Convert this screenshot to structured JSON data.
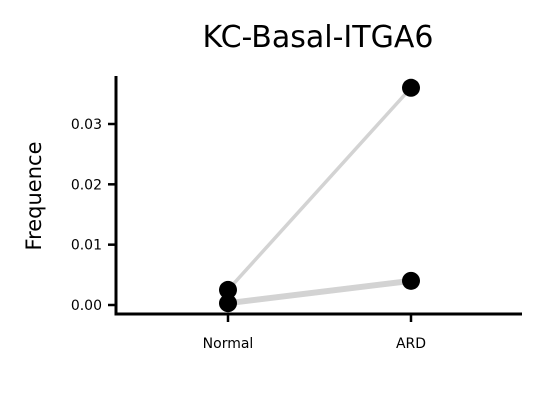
{
  "chart_data": {
    "type": "scatter",
    "title": "KC-Basal-ITGA6",
    "xlabel": "",
    "ylabel": "Frequence",
    "categories": [
      "Normal",
      "ARD"
    ],
    "ylim": [
      -0.0015,
      0.0385
    ],
    "yticks": [
      0.0,
      0.01,
      0.02,
      0.03
    ],
    "ytick_labels": [
      "0.00",
      "0.01",
      "0.02",
      "0.03"
    ],
    "grid": false,
    "legend": "none",
    "paired": true,
    "pairs": [
      {
        "values": [
          0.0025,
          0.036
        ]
      },
      {
        "values": [
          0.0003,
          0.004
        ]
      }
    ],
    "point_color": "#000000",
    "line_color": "#d3d3d3",
    "axis_color": "#000000"
  }
}
